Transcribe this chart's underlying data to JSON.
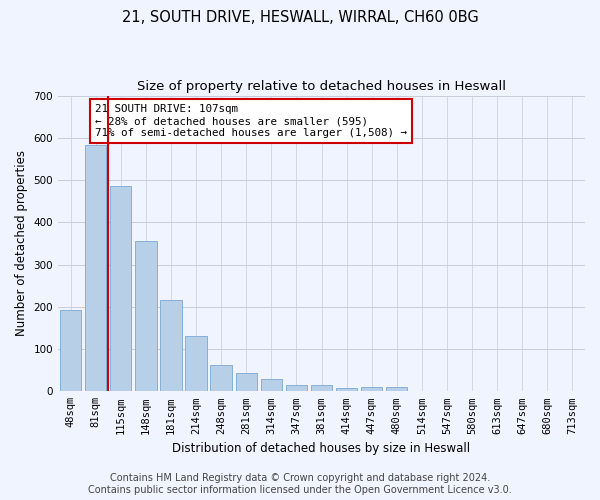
{
  "title": "21, SOUTH DRIVE, HESWALL, WIRRAL, CH60 0BG",
  "subtitle": "Size of property relative to detached houses in Heswall",
  "xlabel": "Distribution of detached houses by size in Heswall",
  "ylabel": "Number of detached properties",
  "categories": [
    "48sqm",
    "81sqm",
    "115sqm",
    "148sqm",
    "181sqm",
    "214sqm",
    "248sqm",
    "281sqm",
    "314sqm",
    "347sqm",
    "381sqm",
    "414sqm",
    "447sqm",
    "480sqm",
    "514sqm",
    "547sqm",
    "580sqm",
    "613sqm",
    "647sqm",
    "680sqm",
    "713sqm"
  ],
  "values": [
    192,
    582,
    487,
    355,
    215,
    131,
    63,
    44,
    30,
    15,
    15,
    8,
    10,
    10,
    0,
    0,
    0,
    0,
    0,
    0,
    0
  ],
  "bar_color": "#b8cfe8",
  "bar_edge_color": "#7aa8d4",
  "vline_color": "#cc0000",
  "annotation_text": "21 SOUTH DRIVE: 107sqm\n← 28% of detached houses are smaller (595)\n71% of semi-detached houses are larger (1,508) →",
  "annotation_box_color": "#ffffff",
  "annotation_box_edge": "#cc0000",
  "ylim": [
    0,
    700
  ],
  "yticks": [
    0,
    100,
    200,
    300,
    400,
    500,
    600,
    700
  ],
  "footer_line1": "Contains HM Land Registry data © Crown copyright and database right 2024.",
  "footer_line2": "Contains public sector information licensed under the Open Government Licence v3.0.",
  "background_color": "#f0f4ff",
  "plot_bg_color": "#f0f4ff",
  "grid_color": "#c8ccd8",
  "title_fontsize": 10.5,
  "subtitle_fontsize": 9.5,
  "axis_label_fontsize": 8.5,
  "tick_fontsize": 7.5,
  "footer_fontsize": 7.0
}
